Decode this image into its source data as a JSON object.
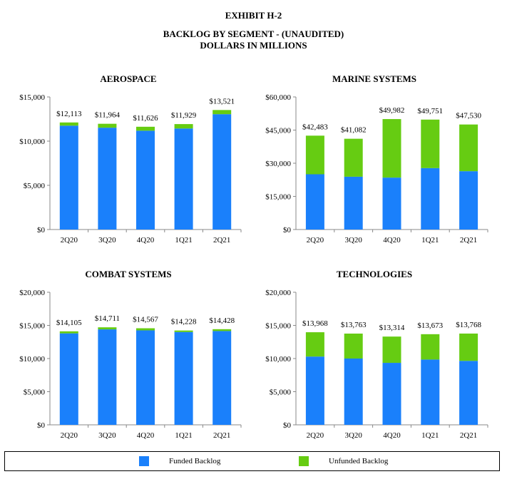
{
  "header": {
    "exhibit": "EXHIBIT H-2",
    "title_line1": "BACKLOG BY SEGMENT - (UNAUDITED)",
    "title_line2": "DOLLARS IN MILLIONS"
  },
  "colors": {
    "funded": "#1a80fb",
    "unfunded": "#66cc12",
    "axis": "#888888"
  },
  "legend": {
    "funded_label": "Funded Backlog",
    "unfunded_label": "Unfunded Backlog"
  },
  "chart_data": [
    {
      "type": "bar",
      "stacked": true,
      "title": "AEROSPACE",
      "categories": [
        "2Q20",
        "3Q20",
        "4Q20",
        "1Q21",
        "2Q21"
      ],
      "series": [
        {
          "name": "Funded Backlog",
          "values": [
            11750,
            11520,
            11180,
            11430,
            13050
          ]
        },
        {
          "name": "Unfunded Backlog",
          "values": [
            363,
            444,
            446,
            499,
            471
          ]
        }
      ],
      "totals_labels": [
        "$12,113",
        "$11,964",
        "$11,626",
        "$11,929",
        "$13,521"
      ],
      "ylim": [
        0,
        15000
      ],
      "yticks": [
        0,
        5000,
        10000,
        15000
      ],
      "ytick_labels": [
        "$0",
        "$5,000",
        "$10,000",
        "$15,000"
      ]
    },
    {
      "type": "bar",
      "stacked": true,
      "title": "MARINE SYSTEMS",
      "categories": [
        "2Q20",
        "3Q20",
        "4Q20",
        "1Q21",
        "2Q21"
      ],
      "series": [
        {
          "name": "Funded Backlog",
          "values": [
            25000,
            23900,
            23500,
            27800,
            26400
          ]
        },
        {
          "name": "Unfunded Backlog",
          "values": [
            17483,
            17182,
            26482,
            21951,
            21130
          ]
        }
      ],
      "totals_labels": [
        "$42,483",
        "$41,082",
        "$49,982",
        "$49,751",
        "$47,530"
      ],
      "ylim": [
        0,
        60000
      ],
      "yticks": [
        0,
        15000,
        30000,
        45000,
        60000
      ],
      "ytick_labels": [
        "$0",
        "$15,000",
        "$30,000",
        "$45,000",
        "$60,000"
      ]
    },
    {
      "type": "bar",
      "stacked": true,
      "title": "COMBAT SYSTEMS",
      "categories": [
        "2Q20",
        "3Q20",
        "4Q20",
        "1Q21",
        "2Q21"
      ],
      "series": [
        {
          "name": "Funded Backlog",
          "values": [
            13800,
            14400,
            14250,
            14000,
            14150
          ]
        },
        {
          "name": "Unfunded Backlog",
          "values": [
            305,
            311,
            317,
            228,
            278
          ]
        }
      ],
      "totals_labels": [
        "$14,105",
        "$14,711",
        "$14,567",
        "$14,228",
        "$14,428"
      ],
      "ylim": [
        0,
        20000
      ],
      "yticks": [
        0,
        5000,
        10000,
        15000,
        20000
      ],
      "ytick_labels": [
        "$0",
        "$5,000",
        "$10,000",
        "$15,000",
        "$20,000"
      ]
    },
    {
      "type": "bar",
      "stacked": true,
      "title": "TECHNOLOGIES",
      "categories": [
        "2Q20",
        "3Q20",
        "4Q20",
        "1Q21",
        "2Q21"
      ],
      "series": [
        {
          "name": "Funded Backlog",
          "values": [
            10300,
            10000,
            9350,
            9850,
            9650
          ]
        },
        {
          "name": "Unfunded Backlog",
          "values": [
            3668,
            3763,
            3964,
            3823,
            4118
          ]
        }
      ],
      "totals_labels": [
        "$13,968",
        "$13,763",
        "$13,314",
        "$13,673",
        "$13,768"
      ],
      "ylim": [
        0,
        20000
      ],
      "yticks": [
        0,
        5000,
        10000,
        15000,
        20000
      ],
      "ytick_labels": [
        "$0",
        "$5,000",
        "$10,000",
        "$15,000",
        "$20,000"
      ]
    }
  ]
}
